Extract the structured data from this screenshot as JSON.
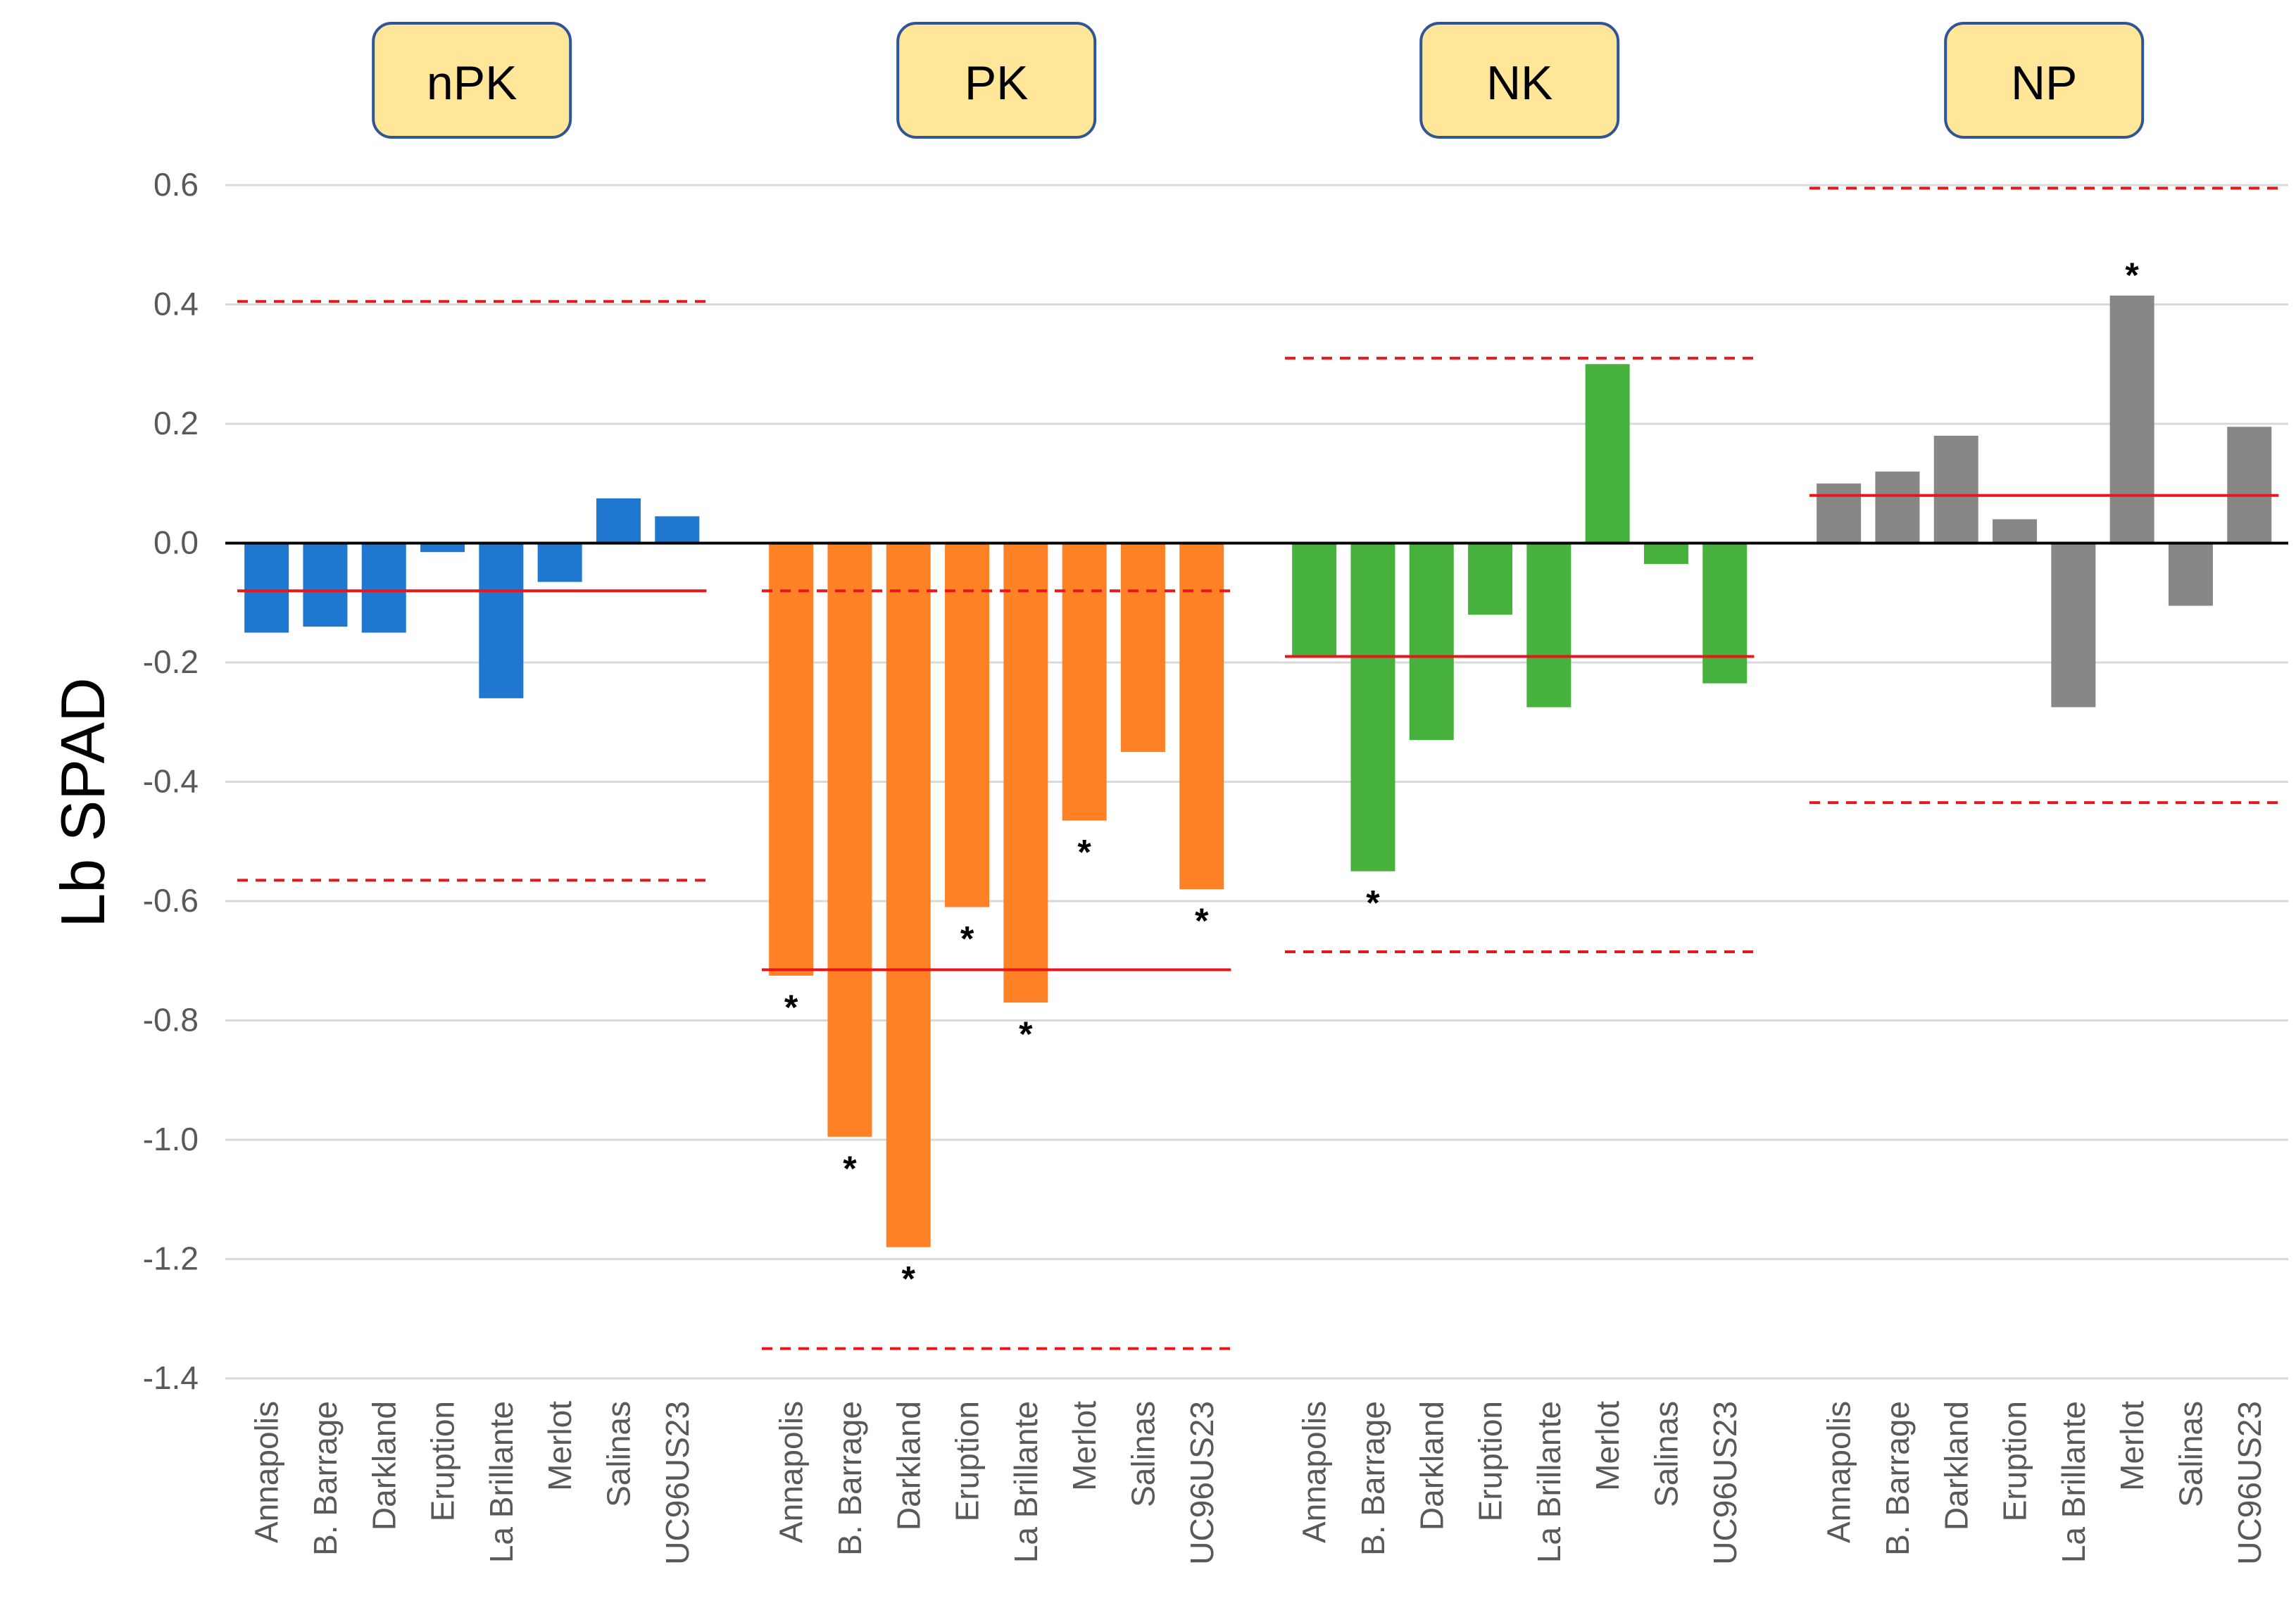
{
  "chart_data": {
    "type": "bar",
    "title": "",
    "ylabel": "Lb SPAD",
    "xlabel": "",
    "ylim": [
      -1.4,
      0.6
    ],
    "yticks": [
      0.6,
      0.4,
      0.2,
      0.0,
      -0.2,
      -0.4,
      -0.6,
      -0.8,
      -1.0,
      -1.2,
      -1.4
    ],
    "ytick_labels": [
      "0.6",
      "0.4",
      "0.2",
      "0.0",
      "-0.2",
      "-0.4",
      "-0.6",
      "-0.8",
      "-1.0",
      "-1.2",
      "-1.4"
    ],
    "grid": true,
    "categories": [
      "Annapolis",
      "B. Barrage",
      "Darkland",
      "Eruption",
      "La Brillante",
      "Merlot",
      "Salinas",
      "UC96US23"
    ],
    "significance_marker": "*",
    "colors": {
      "nPK": "#1F77CF",
      "PK": "#FF8126",
      "NK": "#46B13C",
      "NP": "#878787",
      "mean_line": "#E8171B",
      "threshold_line": "#E8171B",
      "panel_label_bg": "#FFE699",
      "panel_label_border": "#2F5597",
      "grid": "#D9D9D9",
      "axis_text": "#595959"
    },
    "series": [
      {
        "name": "nPK",
        "values": [
          -0.15,
          -0.14,
          -0.15,
          -0.015,
          -0.26,
          -0.065,
          0.075,
          0.045
        ],
        "significant": [
          false,
          false,
          false,
          false,
          false,
          false,
          false,
          false
        ],
        "mean": -0.08,
        "lower_threshold": -0.565,
        "upper_threshold": 0.405
      },
      {
        "name": "PK",
        "values": [
          -0.725,
          -0.995,
          -1.18,
          -0.61,
          -0.77,
          -0.465,
          -0.35,
          -0.58
        ],
        "significant": [
          true,
          true,
          true,
          true,
          true,
          true,
          false,
          true
        ],
        "mean": -0.715,
        "lower_threshold": -1.35,
        "upper_threshold": -0.08
      },
      {
        "name": "NK",
        "values": [
          -0.19,
          -0.55,
          -0.33,
          -0.12,
          -0.275,
          0.3,
          -0.035,
          -0.235
        ],
        "significant": [
          false,
          true,
          false,
          false,
          false,
          false,
          false,
          false
        ],
        "mean": -0.19,
        "lower_threshold": -0.685,
        "upper_threshold": 0.31
      },
      {
        "name": "NP",
        "values": [
          0.1,
          0.12,
          0.18,
          0.04,
          -0.275,
          0.415,
          -0.105,
          0.195
        ],
        "significant": [
          false,
          false,
          false,
          false,
          false,
          true,
          false,
          false
        ],
        "mean": 0.08,
        "lower_threshold": -0.435,
        "upper_threshold": 0.595
      }
    ]
  }
}
